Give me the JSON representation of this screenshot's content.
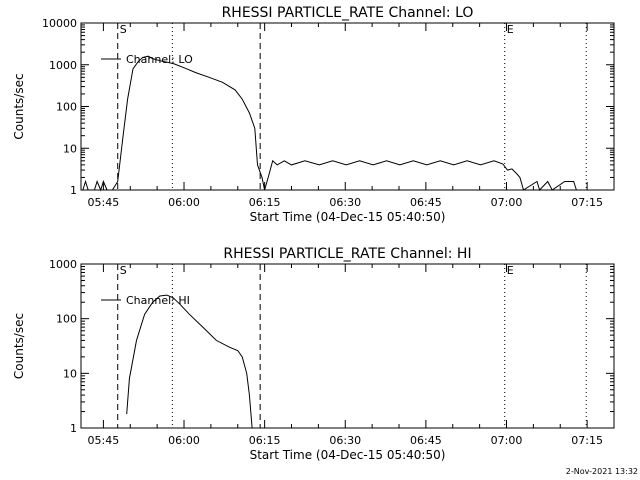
{
  "footer": {
    "timestamp": "2-Nov-2021 13:32"
  },
  "chart_data": [
    {
      "type": "line",
      "title": "RHESSI PARTICLE_RATE Channel: LO",
      "xlabel": "Start Time (04-Dec-15 05:40:50)",
      "ylabel": "Counts/sec",
      "yscale": "log",
      "ylim": [
        1,
        10000
      ],
      "xlim": [
        "05:40:50",
        "07:20:00"
      ],
      "x_ticks": [
        "05:45",
        "06:00",
        "06:15",
        "06:30",
        "06:45",
        "07:00",
        "07:15"
      ],
      "y_ticks": [
        "1",
        "10",
        "100",
        "1000",
        "10000"
      ],
      "legend": {
        "label": "Channel: LO",
        "placement": "top-left"
      },
      "markers": [
        {
          "label": "S",
          "time": "05:47:40",
          "style": "dashed"
        },
        {
          "label": "",
          "time": "05:57:50",
          "style": "dotted"
        },
        {
          "label": "",
          "time": "06:14:10",
          "style": "dashed"
        },
        {
          "label": "E",
          "time": "06:59:40",
          "style": "dotted"
        },
        {
          "label": "",
          "time": "07:14:50",
          "style": "dotted"
        }
      ],
      "series": [
        {
          "name": "Channel: LO",
          "x": [
            "05:41:10",
            "05:41:40",
            "05:42:10",
            "05:42:40",
            "05:43:20",
            "05:43:50",
            "05:44:30",
            "05:45:00",
            "05:45:40",
            "05:46:10",
            "05:46:40",
            "05:47:40",
            "05:48:40",
            "05:49:30",
            "05:50:30",
            "05:51:30",
            "05:52:20",
            "05:53:20",
            "05:54:10",
            "05:55:30",
            "05:56:50",
            "05:58:10",
            "05:59:30",
            "06:00:30",
            "06:02:10",
            "06:04:40",
            "06:07:10",
            "06:09:30",
            "06:10:50",
            "06:12:10",
            "06:13:10",
            "06:13:40",
            "06:14:30",
            "06:15:00",
            "06:15:40",
            "06:16:30",
            "06:17:20",
            "06:18:40",
            "06:20:00",
            "06:22:30",
            "06:25:10",
            "06:27:40",
            "06:30:10",
            "06:32:40",
            "06:35:10",
            "06:37:40",
            "06:40:10",
            "06:42:40",
            "06:45:10",
            "06:47:40",
            "06:50:10",
            "06:52:40",
            "06:55:10",
            "06:57:40",
            "06:59:20",
            "07:00:10",
            "07:01:00",
            "07:01:50",
            "07:02:30",
            "07:03:10",
            "07:05:40",
            "07:06:10",
            "07:07:40",
            "07:08:30",
            "07:10:50",
            "07:12:30",
            "07:13:00",
            "07:13:40"
          ],
          "values": [
            1,
            1.6,
            1,
            1,
            1,
            1.6,
            1,
            1.6,
            1,
            1,
            1,
            1.6,
            20,
            150,
            800,
            1200,
            1500,
            1600,
            1400,
            1250,
            1150,
            1050,
            900,
            800,
            650,
            500,
            380,
            250,
            150,
            70,
            30,
            4,
            2,
            1,
            2,
            5,
            4,
            5,
            4,
            5,
            4,
            5,
            4,
            5,
            4,
            5,
            4,
            5,
            4,
            5,
            4,
            5,
            4,
            5,
            4.2,
            3,
            3.2,
            2.5,
            2,
            1,
            1.6,
            1,
            1.6,
            1,
            1.6,
            1.6,
            1,
            1
          ]
        }
      ]
    },
    {
      "type": "line",
      "title": "RHESSI PARTICLE_RATE Channel: HI",
      "xlabel": "Start Time (04-Dec-15 05:40:50)",
      "ylabel": "Counts/sec",
      "yscale": "log",
      "ylim": [
        1,
        1000
      ],
      "xlim": [
        "05:40:50",
        "07:20:00"
      ],
      "x_ticks": [
        "05:45",
        "06:00",
        "06:15",
        "06:30",
        "06:45",
        "07:00",
        "07:15"
      ],
      "y_ticks": [
        "1",
        "10",
        "100",
        "1000"
      ],
      "legend": {
        "label": "Channel: HI",
        "placement": "top-left"
      },
      "markers": [
        {
          "label": "S",
          "time": "05:47:40",
          "style": "dashed"
        },
        {
          "label": "",
          "time": "05:57:50",
          "style": "dotted"
        },
        {
          "label": "",
          "time": "06:14:10",
          "style": "dashed"
        },
        {
          "label": "E",
          "time": "06:59:40",
          "style": "dotted"
        },
        {
          "label": "",
          "time": "07:14:50",
          "style": "dotted"
        }
      ],
      "series": [
        {
          "name": "Channel: HI",
          "x": [
            "05:49:20",
            "05:49:50",
            "05:51:10",
            "05:52:40",
            "05:54:10",
            "05:55:30",
            "05:56:50",
            "05:58:00",
            "05:59:20",
            "06:01:00",
            "06:03:30",
            "06:06:00",
            "06:08:30",
            "06:10:00",
            "06:10:50",
            "06:11:40",
            "06:12:10",
            "06:12:40"
          ],
          "values": [
            1.8,
            8,
            40,
            120,
            200,
            260,
            270,
            240,
            180,
            120,
            70,
            40,
            30,
            26,
            20,
            10,
            4,
            1
          ]
        }
      ]
    }
  ]
}
